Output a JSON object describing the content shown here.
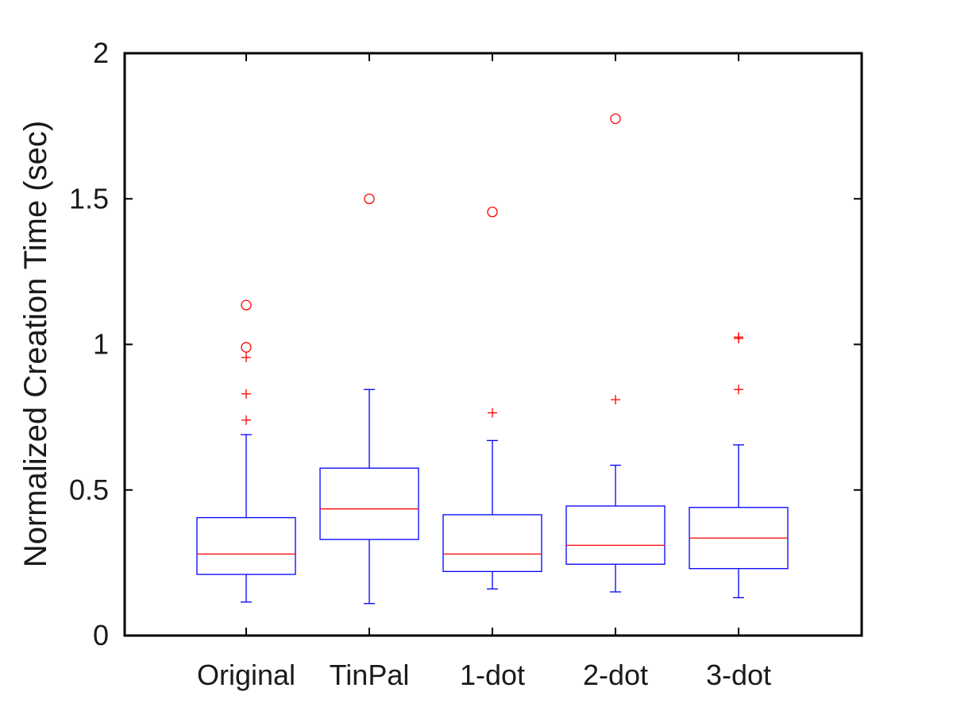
{
  "chart_data": {
    "type": "box",
    "title": "",
    "xlabel": "",
    "ylabel": "Normalized Creation Time (sec)",
    "ylim": [
      0,
      2
    ],
    "yticks": [
      {
        "value": 0,
        "label": "0"
      },
      {
        "value": 0.5,
        "label": "0.5"
      },
      {
        "value": 1,
        "label": "1"
      },
      {
        "value": 1.5,
        "label": "1.5"
      },
      {
        "value": 2,
        "label": "2"
      }
    ],
    "grid": false,
    "colors": {
      "box": "#0000ff",
      "median": "#ff0000",
      "outlier": "#ff0000",
      "axis": "#000000"
    },
    "categories": [
      "Original",
      "TinPal",
      "1-dot",
      "2-dot",
      "3-dot"
    ],
    "boxes": [
      {
        "label": "Original",
        "whisker_low": 0.115,
        "q1": 0.21,
        "median": 0.28,
        "q3": 0.405,
        "whisker_high": 0.69,
        "outliers": [
          {
            "value": 0.74,
            "marker": "plus"
          },
          {
            "value": 0.83,
            "marker": "plus"
          },
          {
            "value": 0.955,
            "marker": "plus"
          },
          {
            "value": 0.99,
            "marker": "circle"
          },
          {
            "value": 1.135,
            "marker": "circle"
          }
        ]
      },
      {
        "label": "TinPal",
        "whisker_low": 0.11,
        "q1": 0.33,
        "median": 0.435,
        "q3": 0.575,
        "whisker_high": 0.845,
        "outliers": [
          {
            "value": 1.5,
            "marker": "circle"
          }
        ]
      },
      {
        "label": "1-dot",
        "whisker_low": 0.16,
        "q1": 0.22,
        "median": 0.28,
        "q3": 0.415,
        "whisker_high": 0.67,
        "outliers": [
          {
            "value": 0.765,
            "marker": "plus"
          },
          {
            "value": 1.455,
            "marker": "circle"
          }
        ]
      },
      {
        "label": "2-dot",
        "whisker_low": 0.15,
        "q1": 0.245,
        "median": 0.31,
        "q3": 0.445,
        "whisker_high": 0.585,
        "outliers": [
          {
            "value": 0.81,
            "marker": "plus"
          },
          {
            "value": 1.775,
            "marker": "circle"
          }
        ]
      },
      {
        "label": "3-dot",
        "whisker_low": 0.13,
        "q1": 0.23,
        "median": 0.335,
        "q3": 0.44,
        "whisker_high": 0.655,
        "outliers": [
          {
            "value": 0.845,
            "marker": "plus"
          },
          {
            "value": 1.02,
            "marker": "plus"
          },
          {
            "value": 1.025,
            "marker": "plus"
          }
        ]
      }
    ]
  }
}
